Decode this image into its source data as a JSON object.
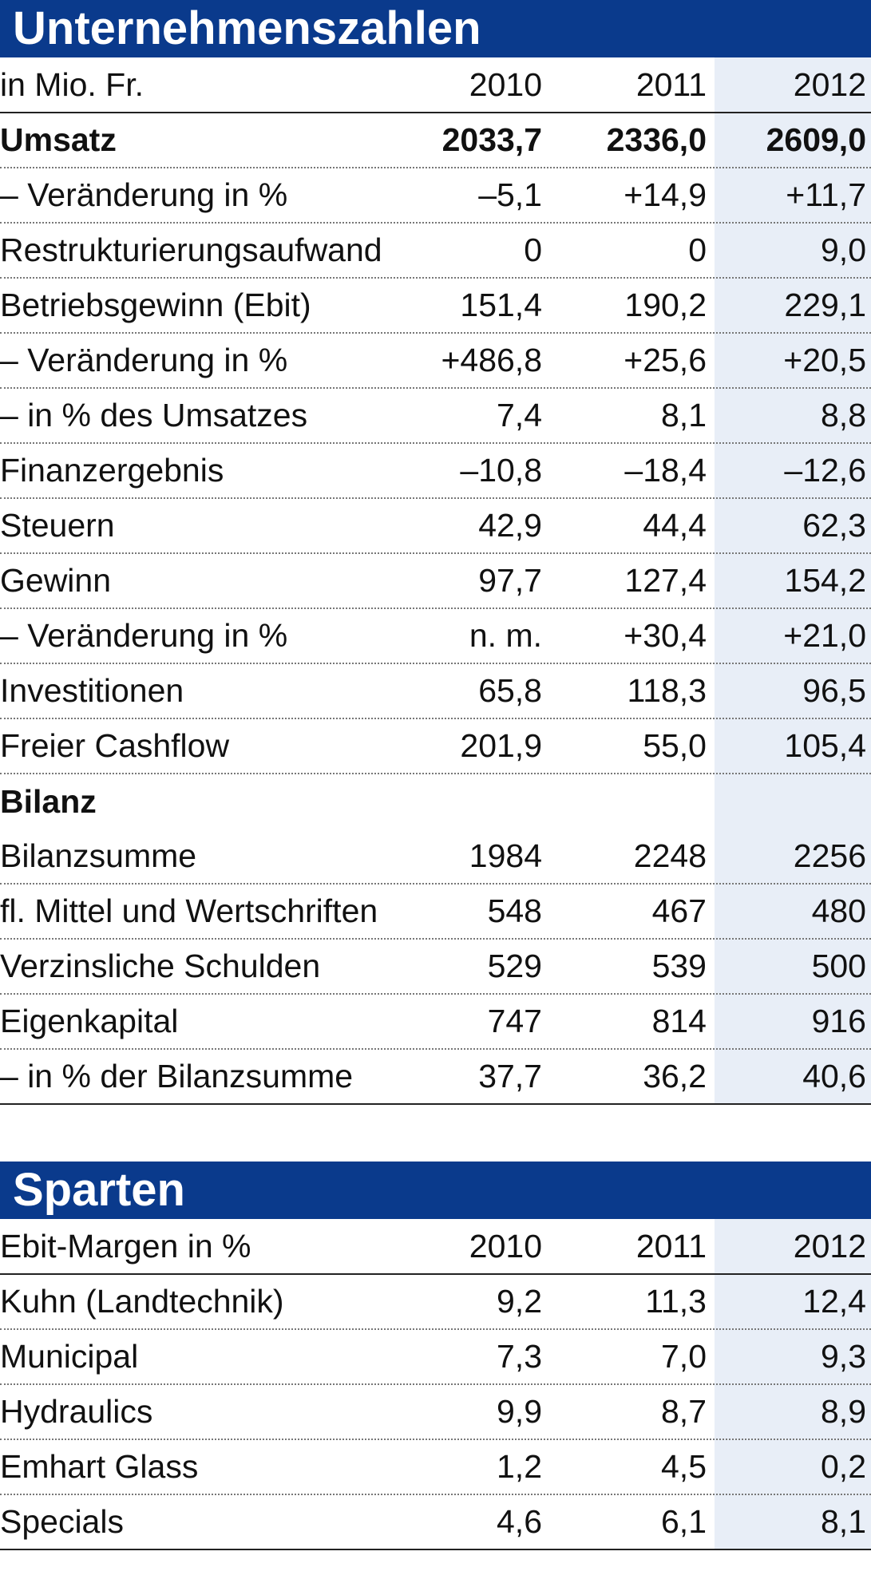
{
  "company": {
    "title": "Unternehmenszahlen",
    "header": {
      "label": "in Mio. Fr.",
      "years": [
        "2010",
        "2011",
        "2012"
      ]
    },
    "rows": [
      {
        "label": "Umsatz",
        "values": [
          "2033,7",
          "2336,0",
          "2609,0"
        ],
        "bold": true
      },
      {
        "label": "– Veränderung in %",
        "values": [
          "–5,1",
          "+14,9",
          "+11,7"
        ]
      },
      {
        "label": "Restrukturierungsaufwand",
        "values": [
          "0",
          "0",
          "9,0"
        ]
      },
      {
        "label": "Betriebsgewinn (Ebit)",
        "values": [
          "151,4",
          "190,2",
          "229,1"
        ]
      },
      {
        "label": "– Veränderung in %",
        "values": [
          "+486,8",
          "+25,6",
          "+20,5"
        ]
      },
      {
        "label": "– in % des Umsatzes",
        "values": [
          "7,4",
          "8,1",
          "8,8"
        ]
      },
      {
        "label": "Finanzergebnis",
        "values": [
          "–10,8",
          "–18,4",
          "–12,6"
        ]
      },
      {
        "label": "Steuern",
        "values": [
          "42,9",
          "44,4",
          "62,3"
        ]
      },
      {
        "label": "Gewinn",
        "values": [
          "97,7",
          "127,4",
          "154,2"
        ]
      },
      {
        "label": "– Veränderung in %",
        "values": [
          "n. m.",
          "+30,4",
          "+21,0"
        ]
      },
      {
        "label": "Investitionen",
        "values": [
          "65,8",
          "118,3",
          "96,5"
        ]
      },
      {
        "label": "Freier Cashflow",
        "values": [
          "201,9",
          "55,0",
          "105,4"
        ]
      },
      {
        "label": "Bilanz",
        "values": [],
        "section": true
      },
      {
        "label": "Bilanzsumme",
        "values": [
          "1984",
          "2248",
          "2256"
        ]
      },
      {
        "label": "fl. Mittel und Wertschriften",
        "values": [
          "548",
          "467",
          "480"
        ]
      },
      {
        "label": "Verzinsliche Schulden",
        "values": [
          "529",
          "539",
          "500"
        ]
      },
      {
        "label": "Eigenkapital",
        "values": [
          "747",
          "814",
          "916"
        ]
      },
      {
        "label": "– in % der Bilanzsumme",
        "values": [
          "37,7",
          "36,2",
          "40,6"
        ]
      }
    ]
  },
  "divisions": {
    "title": "Sparten",
    "header": {
      "label": "Ebit-Margen in %",
      "years": [
        "2010",
        "2011",
        "2012"
      ]
    },
    "rows": [
      {
        "label": "Kuhn (Landtechnik)",
        "values": [
          "9,2",
          "11,3",
          "12,4"
        ]
      },
      {
        "label": "Municipal",
        "values": [
          "7,3",
          "7,0",
          "9,3"
        ]
      },
      {
        "label": "Hydraulics",
        "values": [
          "9,9",
          "8,7",
          "8,9"
        ]
      },
      {
        "label": "Emhart Glass",
        "values": [
          "1,2",
          "4,5",
          "0,2"
        ]
      },
      {
        "label": "Specials",
        "values": [
          "4,6",
          "6,1",
          "8,1"
        ]
      }
    ]
  },
  "colors": {
    "banner": "#0a3a8c",
    "shade": "#e8eef7"
  }
}
